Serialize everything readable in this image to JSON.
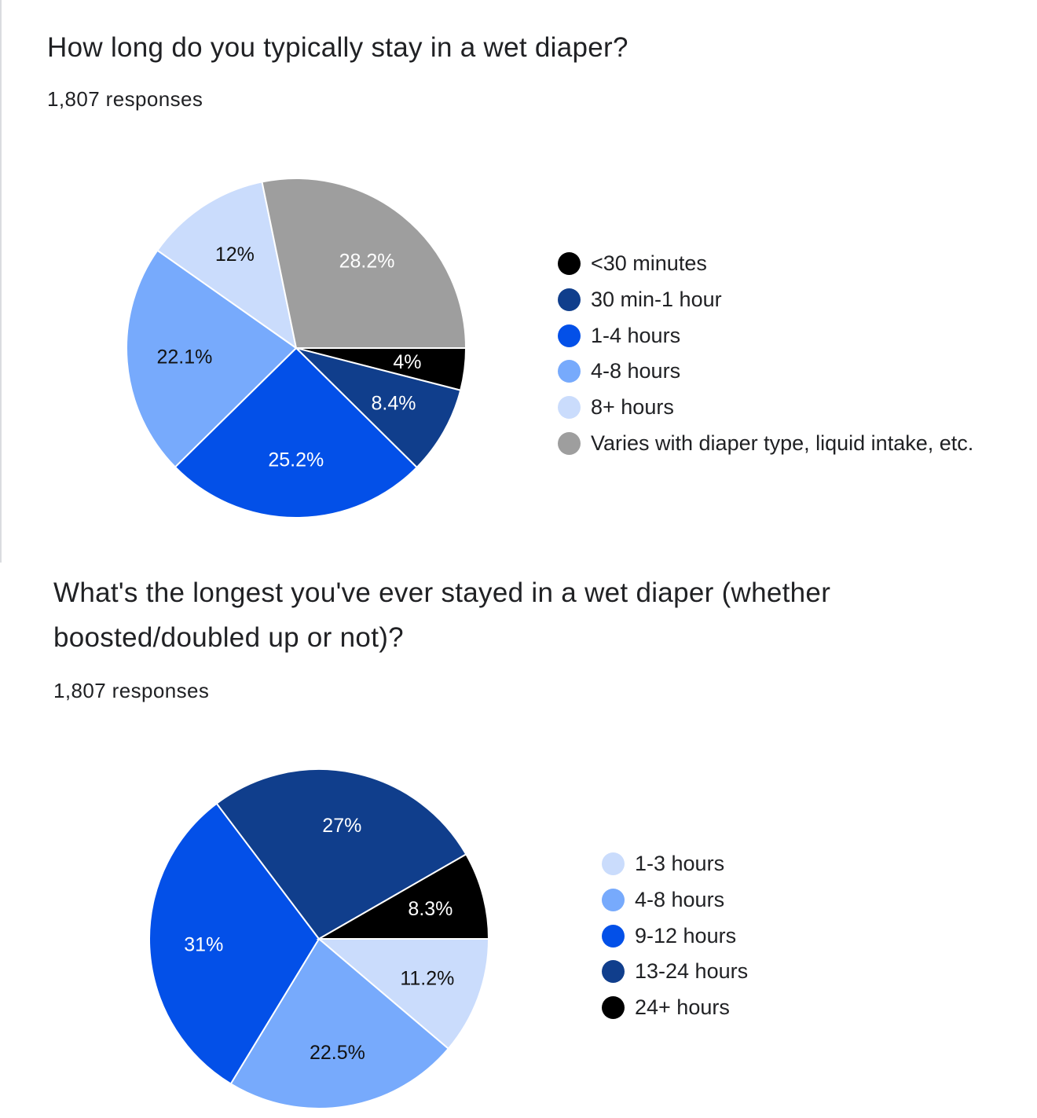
{
  "questions": [
    {
      "title": "How long do you typically stay in a wet diaper?",
      "responses": "1,807 responses"
    },
    {
      "title": "What's the longest you've ever stayed in a wet diaper (whether boosted/doubled up or not)?",
      "responses": "1,807 responses"
    }
  ],
  "chart_data": [
    {
      "type": "pie",
      "title": "How long do you typically stay in a wet diaper?",
      "legend_position": "right",
      "slices": [
        {
          "label": "<30 minutes",
          "value": 4.0,
          "value_label": "4%",
          "color": "#000000",
          "label_color": "#ffffff"
        },
        {
          "label": "30 min-1 hour",
          "value": 8.4,
          "value_label": "8.4%",
          "color": "#103e8c",
          "label_color": "#ffffff"
        },
        {
          "label": "1-4 hours",
          "value": 25.2,
          "value_label": "25.2%",
          "color": "#0350e8",
          "label_color": "#ffffff"
        },
        {
          "label": "4-8 hours",
          "value": 22.1,
          "value_label": "22.1%",
          "color": "#77aafc",
          "label_color": "#111111"
        },
        {
          "label": "8+ hours",
          "value": 12.0,
          "value_label": "12%",
          "color": "#cadcfc",
          "label_color": "#111111"
        },
        {
          "label": "Varies with diaper type, liquid intake, etc.",
          "value": 28.2,
          "value_label": "28.2%",
          "color": "#9e9e9e",
          "label_color": "#ffffff"
        }
      ]
    },
    {
      "type": "pie",
      "title": "What's the longest you've ever stayed in a wet diaper (whether boosted/doubled up or not)?",
      "legend_position": "right",
      "slices": [
        {
          "label": "1-3 hours",
          "value": 11.2,
          "value_label": "11.2%",
          "color": "#cadcfc",
          "label_color": "#111111"
        },
        {
          "label": "4-8 hours",
          "value": 22.5,
          "value_label": "22.5%",
          "color": "#77aafc",
          "label_color": "#111111"
        },
        {
          "label": "9-12 hours",
          "value": 31.0,
          "value_label": "31%",
          "color": "#0350e8",
          "label_color": "#ffffff"
        },
        {
          "label": "13-24 hours",
          "value": 27.0,
          "value_label": "27%",
          "color": "#103e8c",
          "label_color": "#ffffff"
        },
        {
          "label": "24+ hours",
          "value": 8.3,
          "value_label": "8.3%",
          "color": "#000000",
          "label_color": "#ffffff"
        }
      ]
    }
  ]
}
